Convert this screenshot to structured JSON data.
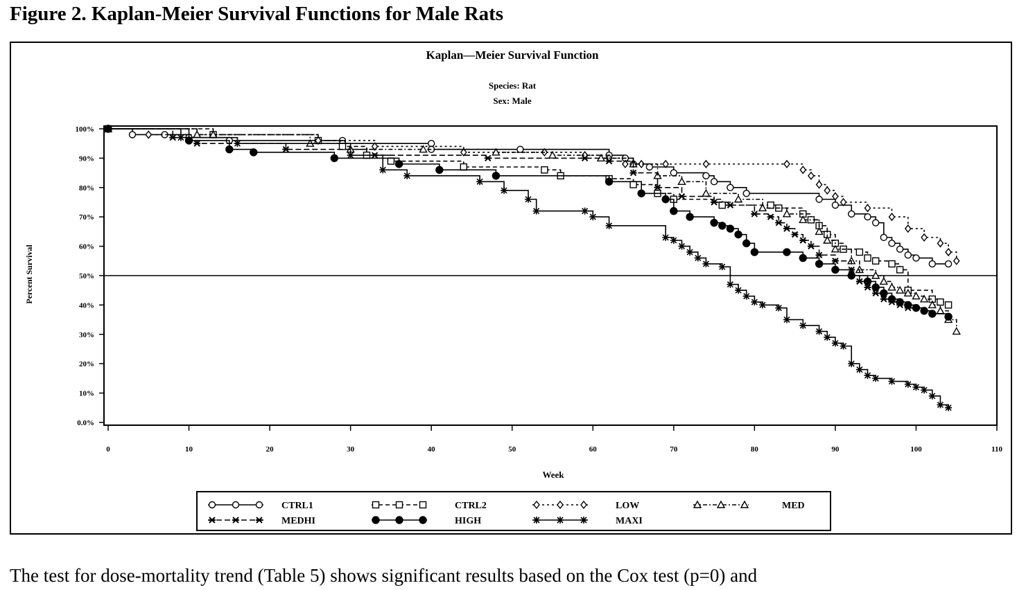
{
  "figure": {
    "caption": "Figure 2. Kaplan-Meier Survival Functions for Male Rats",
    "body_text": "The test for dose-mortality trend (Table 5) shows significant results based on the Cox test (p=0) and"
  },
  "chart_data": {
    "type": "line",
    "step": true,
    "title": "Kaplan—Meier Survival Function",
    "subtitle_lines": [
      "Species: Rat",
      "Sex: Male"
    ],
    "xlabel": "Week",
    "ylabel": "Percent Survival",
    "xlim": [
      0,
      110
    ],
    "ylim": [
      0,
      100
    ],
    "x_ticks": [
      0,
      10,
      20,
      30,
      40,
      50,
      60,
      70,
      80,
      90,
      100,
      110
    ],
    "x_tick_labels": [
      "0",
      "10",
      "20",
      "30",
      "40",
      "50",
      "60",
      "70",
      "80",
      "90",
      "100",
      "110"
    ],
    "y_ticks": [
      0,
      10,
      20,
      30,
      40,
      50,
      60,
      70,
      80,
      90,
      100
    ],
    "y_tick_labels": [
      "0.0%",
      "10%",
      "20%",
      "30%",
      "40%",
      "50%",
      "60%",
      "70%",
      "80%",
      "90%",
      "100%"
    ],
    "reference_line": 50,
    "grid": false,
    "legend_position": "bottom",
    "series": [
      {
        "name": "CTRL1",
        "marker": "circle",
        "dash": "solid",
        "x": [
          0,
          3,
          7,
          10,
          15,
          29,
          29,
          40,
          40,
          51,
          62,
          64,
          65,
          67,
          70,
          74,
          75,
          77,
          79,
          88,
          90,
          92,
          94,
          95,
          96,
          97,
          98,
          99,
          100,
          102,
          104
        ],
        "y": [
          100,
          98,
          98,
          97,
          96,
          96,
          95,
          95,
          93,
          93,
          91,
          90,
          88,
          87,
          85,
          84,
          82,
          80,
          78,
          76,
          74,
          71,
          70,
          68,
          63,
          61,
          59,
          57,
          56,
          54,
          54
        ]
      },
      {
        "name": "CTRL2",
        "marker": "square",
        "dash": "6 4",
        "x": [
          0,
          13,
          26,
          29,
          32,
          35,
          44,
          54,
          56,
          62,
          65,
          68,
          70,
          76,
          82,
          83,
          86,
          87,
          88,
          89,
          90,
          91,
          93,
          94,
          95,
          97,
          98,
          99,
          102,
          103,
          104
        ],
        "y": [
          100,
          98,
          96,
          94,
          91,
          89,
          87,
          86,
          84,
          83,
          81,
          78,
          76,
          74,
          74,
          73,
          71,
          69,
          67,
          64,
          61,
          59,
          58,
          56,
          55,
          54,
          52,
          45,
          42,
          41,
          40
        ]
      },
      {
        "name": "LOW",
        "marker": "diamond",
        "dash": "3 4",
        "x": [
          0,
          5,
          26,
          33,
          44,
          54,
          59,
          62,
          64,
          66,
          69,
          74,
          84,
          86,
          87,
          88,
          89,
          90,
          91,
          94,
          97,
          99,
          101,
          103,
          104,
          105
        ],
        "y": [
          100,
          98,
          96,
          94,
          92,
          92,
          91,
          90,
          88,
          88,
          88,
          88,
          88,
          86,
          84,
          81,
          79,
          77,
          75,
          73,
          70,
          66,
          63,
          61,
          58,
          55
        ]
      },
      {
        "name": "MED",
        "marker": "triangle",
        "dash": "6 3 2 3",
        "x": [
          0,
          11,
          13,
          25,
          30,
          39,
          48,
          55,
          61,
          65,
          68,
          71,
          74,
          78,
          81,
          84,
          86,
          88,
          89,
          90,
          92,
          93,
          95,
          96,
          97,
          98,
          99,
          100,
          101,
          102,
          103,
          104,
          105
        ],
        "y": [
          100,
          98,
          98,
          95,
          93,
          93,
          92,
          91,
          90,
          88,
          84,
          82,
          78,
          76,
          73,
          71,
          69,
          65,
          62,
          59,
          55,
          52,
          50,
          48,
          46,
          45,
          44,
          43,
          42,
          40,
          38,
          35,
          31
        ]
      },
      {
        "name": "MEDHI",
        "marker": "cross",
        "dash": "8 4",
        "x": [
          0,
          8,
          11,
          22,
          33,
          47,
          59,
          62,
          65,
          68,
          71,
          75,
          77,
          80,
          82,
          83,
          84,
          85,
          86,
          87,
          88,
          90,
          92,
          93,
          94,
          95,
          96,
          97,
          98,
          99,
          101,
          102,
          104
        ],
        "y": [
          100,
          97,
          95,
          93,
          91,
          90,
          90,
          89,
          85,
          80,
          77,
          75,
          74,
          71,
          70,
          68,
          66,
          64,
          62,
          60,
          57,
          55,
          52,
          48,
          46,
          44,
          42,
          41,
          40,
          39,
          38,
          37,
          36
        ]
      },
      {
        "name": "HIGH",
        "marker": "dot",
        "dash": "solid",
        "x": [
          0,
          10,
          15,
          18,
          28,
          36,
          41,
          48,
          62,
          66,
          69,
          70,
          72,
          75,
          76,
          77,
          78,
          79,
          80,
          84,
          86,
          88,
          90,
          92,
          94,
          95,
          96,
          97,
          98,
          99,
          100,
          101,
          102,
          104
        ],
        "y": [
          100,
          96,
          93,
          92,
          90,
          88,
          86,
          84,
          82,
          78,
          76,
          72,
          70,
          68,
          67,
          66,
          64,
          61,
          58,
          58,
          56,
          54,
          52,
          50,
          48,
          46,
          44,
          42,
          41,
          40,
          39,
          38,
          37,
          36
        ]
      },
      {
        "name": "MAXI",
        "marker": "star",
        "dash": "solid",
        "x": [
          0,
          9,
          16,
          30,
          34,
          37,
          46,
          49,
          52,
          53,
          59,
          60,
          62,
          69,
          70,
          71,
          72,
          73,
          74,
          76,
          77,
          78,
          79,
          80,
          81,
          83,
          84,
          86,
          88,
          89,
          90,
          91,
          92,
          93,
          94,
          95,
          97,
          99,
          100,
          101,
          102,
          103,
          104
        ],
        "y": [
          100,
          97,
          95,
          91,
          86,
          84,
          82,
          79,
          76,
          72,
          72,
          70,
          67,
          63,
          62,
          60,
          58,
          56,
          54,
          53,
          47,
          45,
          43,
          41,
          40,
          39,
          35,
          33,
          31,
          29,
          27,
          26,
          20,
          18,
          16,
          15,
          14,
          13,
          12,
          11,
          9,
          6,
          5
        ]
      }
    ]
  },
  "styles": {
    "line_color": "#000000",
    "background": "#ffffff"
  }
}
